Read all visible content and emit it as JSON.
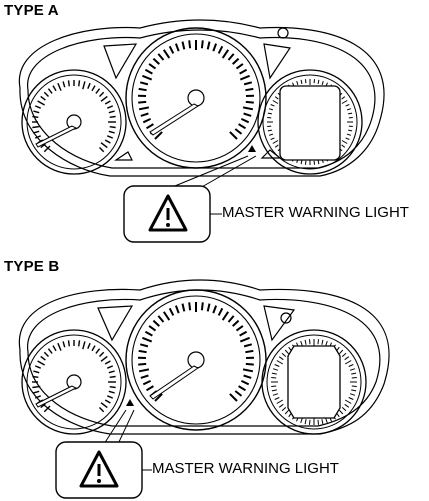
{
  "type_a": {
    "label": "TYPE A",
    "callout": "MASTER WARNING LIGHT"
  },
  "type_b": {
    "label": "TYPE B",
    "callout": "MASTER WARNING LIGHT"
  },
  "colors": {
    "line": "#000000",
    "background": "#ffffff"
  }
}
